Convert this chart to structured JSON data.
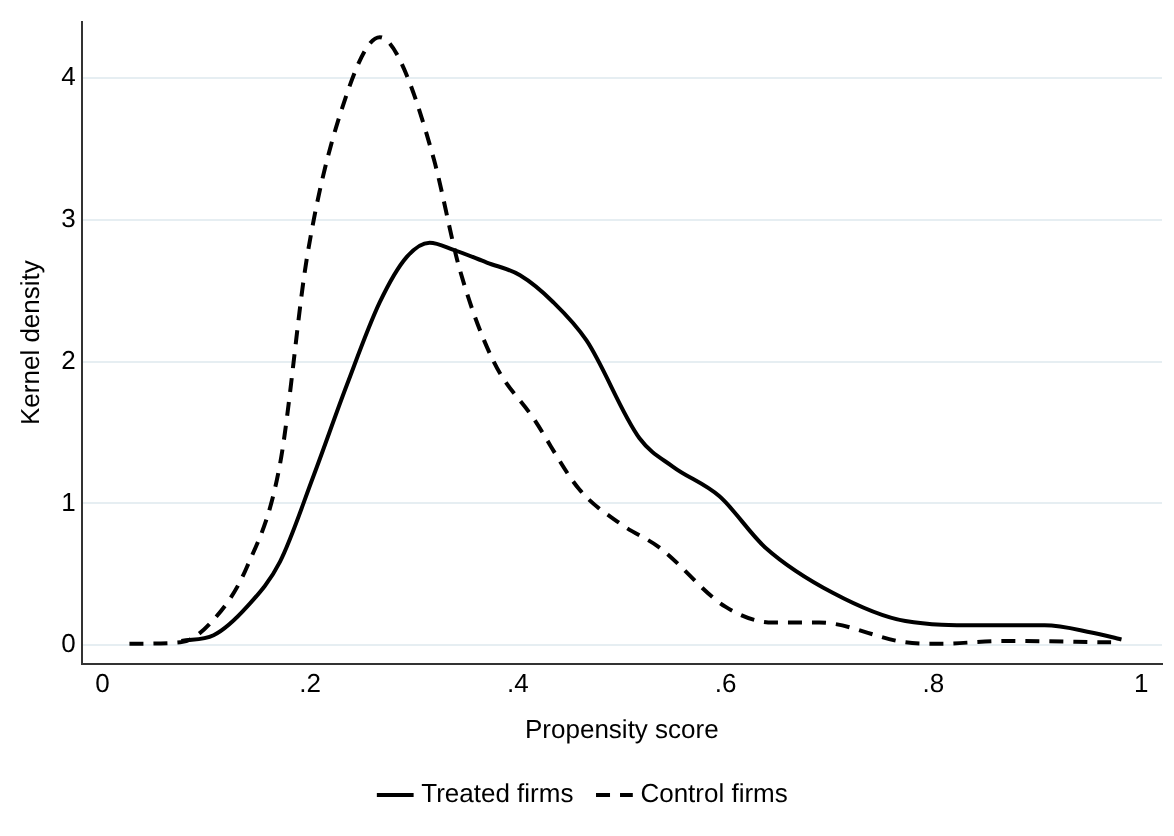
{
  "chart_data": {
    "type": "line",
    "xlabel": "Propensity score",
    "ylabel": "Kernel density",
    "xlim": [
      -0.02,
      1.02
    ],
    "ylim": [
      -0.13,
      4.4
    ],
    "xticks": [
      {
        "value": 0,
        "label": "0"
      },
      {
        "value": 0.2,
        "label": ".2"
      },
      {
        "value": 0.4,
        "label": ".4"
      },
      {
        "value": 0.6,
        "label": ".6"
      },
      {
        "value": 0.8,
        "label": ".8"
      },
      {
        "value": 1,
        "label": "1"
      }
    ],
    "yticks": [
      0,
      1,
      2,
      3,
      4
    ],
    "grid": "y",
    "legend": "bottom",
    "marker": "none",
    "series": [
      {
        "name": "Treated firms",
        "color": "#000000",
        "line_style": "solid",
        "x": [
          0.076,
          0.107,
          0.139,
          0.171,
          0.203,
          0.235,
          0.267,
          0.293,
          0.315,
          0.338,
          0.37,
          0.402,
          0.434,
          0.466,
          0.517,
          0.549,
          0.594,
          0.638,
          0.703,
          0.773,
          0.843,
          0.907,
          0.952,
          0.981
        ],
        "values": [
          0.03,
          0.07,
          0.27,
          0.59,
          1.19,
          1.83,
          2.42,
          2.74,
          2.84,
          2.79,
          2.7,
          2.61,
          2.42,
          2.15,
          1.46,
          1.26,
          1.05,
          0.69,
          0.37,
          0.17,
          0.14,
          0.14,
          0.09,
          0.04
        ]
      },
      {
        "name": "Control firms",
        "color": "#000000",
        "line_style": "dashed",
        "x": [
          0.026,
          0.075,
          0.107,
          0.139,
          0.171,
          0.197,
          0.229,
          0.267,
          0.287,
          0.319,
          0.344,
          0.376,
          0.415,
          0.459,
          0.5,
          0.536,
          0.6,
          0.645,
          0.69,
          0.773,
          0.805,
          0.869,
          0.971
        ],
        "values": [
          0.01,
          0.02,
          0.18,
          0.55,
          1.28,
          2.74,
          3.75,
          4.29,
          4.12,
          3.43,
          2.65,
          2.01,
          1.6,
          1.1,
          0.85,
          0.69,
          0.27,
          0.16,
          0.16,
          0.02,
          0.01,
          0.03,
          0.02
        ]
      }
    ]
  }
}
